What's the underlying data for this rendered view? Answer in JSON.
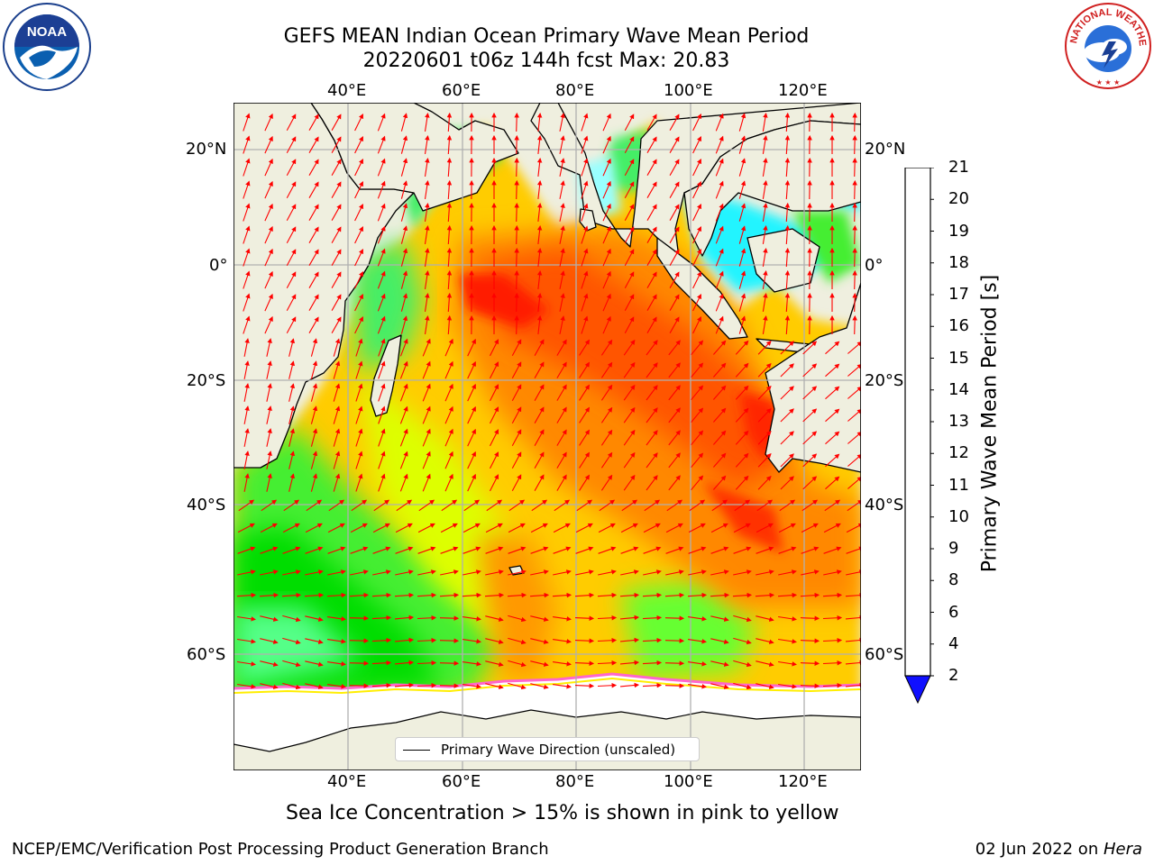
{
  "title_line1": "GEFS MEAN Indian Ocean Primary Wave Mean Period",
  "title_line2": "20220601 t06z 144h fcst   Max: 20.83",
  "logos": {
    "left": "NOAA",
    "right": "NATIONAL WEATHER SERVICE",
    "left_icon": "noaa-logo-icon",
    "right_icon": "nws-logo-icon"
  },
  "lon_labels": [
    "40°E",
    "60°E",
    "80°E",
    "100°E",
    "120°E"
  ],
  "lat_labels": [
    "20°N",
    "0°",
    "20°S",
    "40°S",
    "60°S"
  ],
  "colorbar": {
    "label": "Primary Wave Mean Period [s]",
    "ticks": [
      "2",
      "4",
      "6",
      "8",
      "9",
      "10",
      "11",
      "12",
      "13",
      "14",
      "15",
      "16",
      "17",
      "18",
      "19",
      "20",
      "21"
    ],
    "colors": [
      "#0a64ff",
      "#00c8ff",
      "#00ffff",
      "#40ffff",
      "#99ffff",
      "#55ff80",
      "#00e600",
      "#55ff00",
      "#b3ff00",
      "#dfff00",
      "#ffff00",
      "#ffd700",
      "#ffaa00",
      "#ff8c00",
      "#ff5a00",
      "#ff2800"
    ],
    "extend_color": "#1010ff"
  },
  "legend_text": "Primary Wave Direction (unscaled)",
  "caption": "Sea Ice Concentration > 15% is shown in pink to yellow",
  "footer_left": "NCEP/EMC/Verification Post Processing Product Generation Branch",
  "footer_right_date": "02 Jun 2022 on ",
  "footer_right_host": "Hera",
  "colors": {
    "land": "#efefdf",
    "ice": "#ffffff",
    "arrow": "#ff0000",
    "grid": "#b0b0b0"
  }
}
